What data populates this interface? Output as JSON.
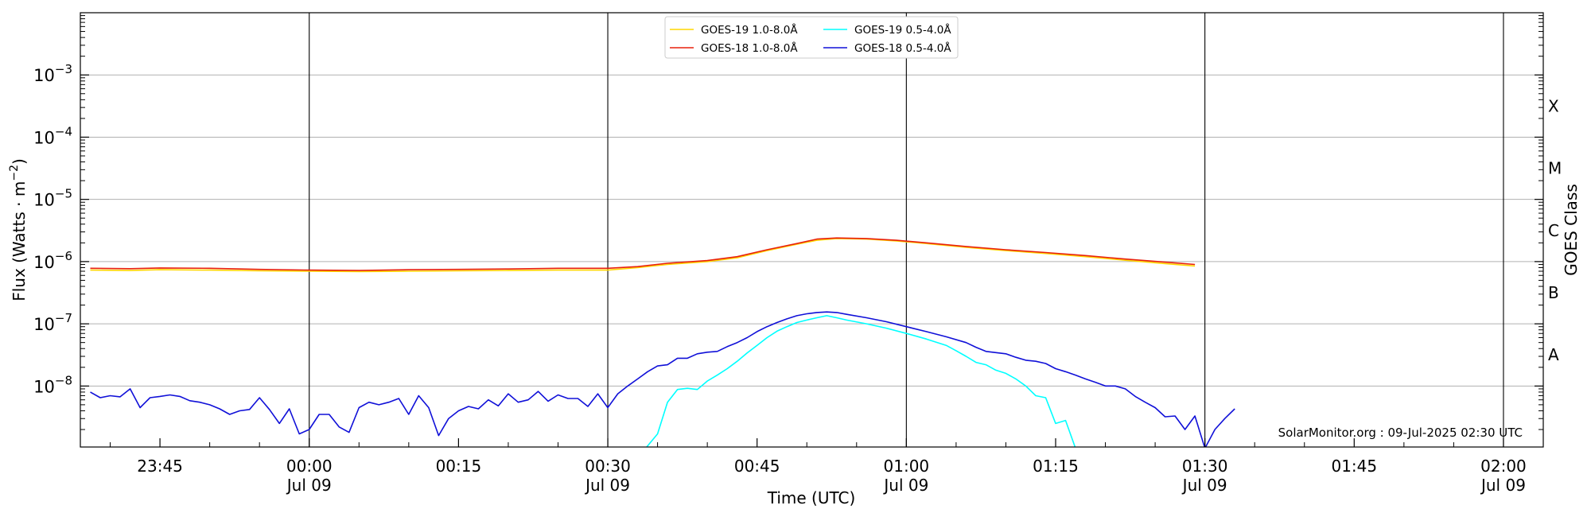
{
  "chart_data": {
    "type": "line",
    "xlabel": "Time (UTC)",
    "ylabel_main": "Flux (Watts",
    "ylabel_dot": "·",
    "ylabel_m": "m",
    "ylabel_exp": "−2",
    "ylabel_close": ")",
    "ylabel_right": "GOES Class",
    "credit": "SolarMonitor.org : 09-Jul-2025 02:30 UTC",
    "x_range_minutes": [
      -23,
      124
    ],
    "y_log_range": [
      -8.98,
      -2.0
    ],
    "y_scale": "log",
    "grid": "horizontal at decades, vertical at half-hours",
    "legend_placement": "top-center",
    "y_ticks": [
      {
        "base": "10",
        "exp": "−8",
        "log": -8
      },
      {
        "base": "10",
        "exp": "−7",
        "log": -7
      },
      {
        "base": "10",
        "exp": "−6",
        "log": -6
      },
      {
        "base": "10",
        "exp": "−5",
        "log": -5
      },
      {
        "base": "10",
        "exp": "−4",
        "log": -4
      },
      {
        "base": "10",
        "exp": "−3",
        "log": -3
      }
    ],
    "classes": [
      {
        "label": "A",
        "log": -7.5
      },
      {
        "label": "B",
        "log": -6.5
      },
      {
        "label": "C",
        "log": -5.5
      },
      {
        "label": "M",
        "log": -4.5
      },
      {
        "label": "X",
        "log": -3.5
      }
    ],
    "x_ticks": [
      {
        "t": -15,
        "label": "23:45",
        "date": ""
      },
      {
        "t": 0,
        "label": "00:00",
        "date": "Jul 09"
      },
      {
        "t": 15,
        "label": "00:15",
        "date": ""
      },
      {
        "t": 30,
        "label": "00:30",
        "date": "Jul 09"
      },
      {
        "t": 45,
        "label": "00:45",
        "date": ""
      },
      {
        "t": 60,
        "label": "01:00",
        "date": "Jul 09"
      },
      {
        "t": 75,
        "label": "01:15",
        "date": ""
      },
      {
        "t": 90,
        "label": "01:30",
        "date": "Jul 09"
      },
      {
        "t": 105,
        "label": "01:45",
        "date": ""
      },
      {
        "t": 120,
        "label": "02:00",
        "date": "Jul 09"
      }
    ],
    "series": [
      {
        "name": "GOES-19 1.0-8.0Å",
        "color": "#ffd700",
        "points": [
          [
            -22,
            7.3e-07
          ],
          [
            -18,
            7.2e-07
          ],
          [
            -15,
            7.4e-07
          ],
          [
            -10,
            7.3e-07
          ],
          [
            -5,
            7.1e-07
          ],
          [
            0,
            7e-07
          ],
          [
            5,
            6.9e-07
          ],
          [
            10,
            7e-07
          ],
          [
            15,
            7.1e-07
          ],
          [
            20,
            7.2e-07
          ],
          [
            25,
            7.3e-07
          ],
          [
            30,
            7.3e-07
          ],
          [
            33,
            8e-07
          ],
          [
            36,
            9e-07
          ],
          [
            40,
            1e-06
          ],
          [
            43,
            1.15e-06
          ],
          [
            46,
            1.5e-06
          ],
          [
            49,
            1.9e-06
          ],
          [
            51,
            2.2e-06
          ],
          [
            53,
            2.35e-06
          ],
          [
            56,
            2.3e-06
          ],
          [
            59,
            2.15e-06
          ],
          [
            62,
            1.95e-06
          ],
          [
            66,
            1.7e-06
          ],
          [
            70,
            1.5e-06
          ],
          [
            74,
            1.35e-06
          ],
          [
            78,
            1.2e-06
          ],
          [
            82,
            1.05e-06
          ],
          [
            86,
            9.3e-07
          ],
          [
            89,
            8.5e-07
          ]
        ]
      },
      {
        "name": "GOES-18 1.0-8.0Å",
        "color": "#e8200c",
        "points": [
          [
            -22,
            7.8e-07
          ],
          [
            -18,
            7.7e-07
          ],
          [
            -15,
            7.9e-07
          ],
          [
            -10,
            7.8e-07
          ],
          [
            -5,
            7.5e-07
          ],
          [
            0,
            7.3e-07
          ],
          [
            5,
            7.2e-07
          ],
          [
            10,
            7.4e-07
          ],
          [
            15,
            7.5e-07
          ],
          [
            20,
            7.6e-07
          ],
          [
            25,
            7.8e-07
          ],
          [
            30,
            7.8e-07
          ],
          [
            33,
            8.3e-07
          ],
          [
            36,
            9.4e-07
          ],
          [
            40,
            1.04e-06
          ],
          [
            43,
            1.2e-06
          ],
          [
            46,
            1.55e-06
          ],
          [
            49,
            1.95e-06
          ],
          [
            51,
            2.3e-06
          ],
          [
            53,
            2.4e-06
          ],
          [
            56,
            2.35e-06
          ],
          [
            59,
            2.2e-06
          ],
          [
            62,
            2e-06
          ],
          [
            66,
            1.75e-06
          ],
          [
            70,
            1.55e-06
          ],
          [
            74,
            1.4e-06
          ],
          [
            78,
            1.25e-06
          ],
          [
            82,
            1.1e-06
          ],
          [
            86,
            9.8e-07
          ],
          [
            89,
            9e-07
          ]
        ]
      },
      {
        "name": "GOES-19 0.5-4.0Å",
        "color": "#00ffff",
        "points": [
          [
            33.8,
            1e-09
          ],
          [
            35,
            1.7e-09
          ],
          [
            36,
            5.5e-09
          ],
          [
            37,
            8.8e-09
          ],
          [
            38,
            9.2e-09
          ],
          [
            39,
            8.8e-09
          ],
          [
            40,
            1.2e-08
          ],
          [
            41,
            1.5e-08
          ],
          [
            42,
            1.9e-08
          ],
          [
            43,
            2.5e-08
          ],
          [
            44,
            3.4e-08
          ],
          [
            45,
            4.5e-08
          ],
          [
            46,
            6e-08
          ],
          [
            47,
            7.6e-08
          ],
          [
            48,
            9e-08
          ],
          [
            49,
            1.05e-07
          ],
          [
            50,
            1.15e-07
          ],
          [
            51,
            1.25e-07
          ],
          [
            52,
            1.35e-07
          ],
          [
            53,
            1.25e-07
          ],
          [
            54,
            1.15e-07
          ],
          [
            56,
            1e-07
          ],
          [
            58,
            8.5e-08
          ],
          [
            60,
            7e-08
          ],
          [
            62,
            5.7e-08
          ],
          [
            64,
            4.5e-08
          ],
          [
            65,
            3.7e-08
          ],
          [
            66,
            3e-08
          ],
          [
            67,
            2.4e-08
          ],
          [
            68,
            2.2e-08
          ],
          [
            69,
            1.8e-08
          ],
          [
            70,
            1.6e-08
          ],
          [
            71,
            1.3e-08
          ],
          [
            72,
            1e-08
          ],
          [
            73,
            7e-09
          ],
          [
            74,
            6.5e-09
          ],
          [
            75,
            2.5e-09
          ],
          [
            76,
            2.8e-09
          ],
          [
            77,
            1e-09
          ]
        ]
      },
      {
        "name": "GOES-18 0.5-4.0Å",
        "color": "#1010d8",
        "points": [
          [
            -22,
            8e-09
          ],
          [
            -21,
            6.5e-09
          ],
          [
            -20,
            7e-09
          ],
          [
            -19,
            6.7e-09
          ],
          [
            -18,
            9e-09
          ],
          [
            -17,
            4.5e-09
          ],
          [
            -16,
            6.5e-09
          ],
          [
            -15,
            6.8e-09
          ],
          [
            -14,
            7.2e-09
          ],
          [
            -13,
            6.8e-09
          ],
          [
            -12,
            5.8e-09
          ],
          [
            -11,
            5.5e-09
          ],
          [
            -10,
            5e-09
          ],
          [
            -9,
            4.3e-09
          ],
          [
            -8,
            3.5e-09
          ],
          [
            -7,
            4e-09
          ],
          [
            -6,
            4.2e-09
          ],
          [
            -5,
            6.5e-09
          ],
          [
            -4,
            4.2e-09
          ],
          [
            -3,
            2.5e-09
          ],
          [
            -2,
            4.3e-09
          ],
          [
            -1,
            1.7e-09
          ],
          [
            0,
            2e-09
          ],
          [
            1,
            3.5e-09
          ],
          [
            2,
            3.5e-09
          ],
          [
            3,
            2.2e-09
          ],
          [
            4,
            1.8e-09
          ],
          [
            5,
            4.5e-09
          ],
          [
            6,
            5.5e-09
          ],
          [
            7,
            5e-09
          ],
          [
            8,
            5.5e-09
          ],
          [
            9,
            6.3e-09
          ],
          [
            10,
            3.5e-09
          ],
          [
            11,
            7e-09
          ],
          [
            12,
            4.5e-09
          ],
          [
            13,
            1.6e-09
          ],
          [
            14,
            3e-09
          ],
          [
            15,
            4e-09
          ],
          [
            16,
            4.7e-09
          ],
          [
            17,
            4.3e-09
          ],
          [
            18,
            6e-09
          ],
          [
            19,
            4.8e-09
          ],
          [
            20,
            7.5e-09
          ],
          [
            21,
            5.5e-09
          ],
          [
            22,
            6e-09
          ],
          [
            23,
            8.2e-09
          ],
          [
            24,
            5.7e-09
          ],
          [
            25,
            7.2e-09
          ],
          [
            26,
            6.3e-09
          ],
          [
            27,
            6.3e-09
          ],
          [
            28,
            4.7e-09
          ],
          [
            29,
            7.5e-09
          ],
          [
            30,
            4.5e-09
          ],
          [
            31,
            7.5e-09
          ],
          [
            32,
            1e-08
          ],
          [
            33,
            1.3e-08
          ],
          [
            34,
            1.7e-08
          ],
          [
            35,
            2.1e-08
          ],
          [
            36,
            2.2e-08
          ],
          [
            37,
            2.8e-08
          ],
          [
            38,
            2.8e-08
          ],
          [
            39,
            3.3e-08
          ],
          [
            40,
            3.5e-08
          ],
          [
            41,
            3.6e-08
          ],
          [
            42,
            4.3e-08
          ],
          [
            43,
            5e-08
          ],
          [
            44,
            6e-08
          ],
          [
            45,
            7.5e-08
          ],
          [
            46,
            9e-08
          ],
          [
            47,
            1.05e-07
          ],
          [
            48,
            1.2e-07
          ],
          [
            49,
            1.35e-07
          ],
          [
            50,
            1.45e-07
          ],
          [
            51,
            1.52e-07
          ],
          [
            52,
            1.55e-07
          ],
          [
            53,
            1.52e-07
          ],
          [
            54,
            1.42e-07
          ],
          [
            56,
            1.25e-07
          ],
          [
            58,
            1.08e-07
          ],
          [
            60,
            9e-08
          ],
          [
            62,
            7.5e-08
          ],
          [
            64,
            6.2e-08
          ],
          [
            66,
            5e-08
          ],
          [
            67,
            4.2e-08
          ],
          [
            68,
            3.6e-08
          ],
          [
            70,
            3.3e-08
          ],
          [
            71,
            2.9e-08
          ],
          [
            72,
            2.6e-08
          ],
          [
            73,
            2.5e-08
          ],
          [
            74,
            2.3e-08
          ],
          [
            75,
            1.9e-08
          ],
          [
            76,
            1.7e-08
          ],
          [
            77,
            1.5e-08
          ],
          [
            78,
            1.3e-08
          ],
          [
            79,
            1.15e-08
          ],
          [
            80,
            1e-08
          ],
          [
            81,
            1e-08
          ],
          [
            82,
            9e-09
          ],
          [
            83,
            6.8e-09
          ],
          [
            84,
            5.5e-09
          ],
          [
            85,
            4.5e-09
          ],
          [
            86,
            3.2e-09
          ],
          [
            87,
            3.3e-09
          ],
          [
            88,
            2e-09
          ],
          [
            89,
            3.3e-09
          ],
          [
            90,
            1e-09
          ],
          [
            91,
            2e-09
          ],
          [
            92,
            3e-09
          ],
          [
            93,
            4.3e-09
          ]
        ]
      }
    ]
  }
}
